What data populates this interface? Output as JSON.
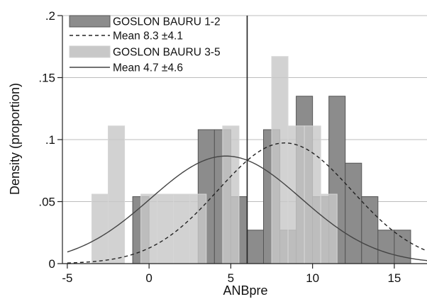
{
  "chart_data": {
    "type": "bar",
    "xlabel": "ANBpre",
    "ylabel": "Density (proportion)",
    "xlim": [
      -5.3,
      17
    ],
    "ylim": [
      0,
      0.2
    ],
    "x_ticks": [
      -5,
      0,
      5,
      10,
      15
    ],
    "x_tick_labels": [
      "-5",
      "0",
      "5",
      "10",
      "15"
    ],
    "y_ticks": [
      0,
      0.05,
      0.1,
      0.15,
      0.2
    ],
    "y_tick_labels": [
      "0",
      ".05",
      ".1",
      ".15",
      ".2"
    ],
    "grid": "horizontal",
    "reference_line_x": 6,
    "legend_position": "top-left",
    "series": [
      {
        "name": "GOSLON BAURU 1-2",
        "kind": "histogram",
        "color": "#8c8c8c",
        "bins": [
          {
            "x0": -1,
            "x1": 0,
            "value": 0.054
          },
          {
            "x0": 3,
            "x1": 4,
            "value": 0.108
          },
          {
            "x0": 4,
            "x1": 5,
            "value": 0.108
          },
          {
            "x0": 5,
            "x1": 6,
            "value": 0.054
          },
          {
            "x0": 6,
            "x1": 7,
            "value": 0.027
          },
          {
            "x0": 7,
            "x1": 8,
            "value": 0.108
          },
          {
            "x0": 8,
            "x1": 9,
            "value": 0.027
          },
          {
            "x0": 9,
            "x1": 10,
            "value": 0.135
          },
          {
            "x0": 10,
            "x1": 11,
            "value": 0.054
          },
          {
            "x0": 11,
            "x1": 12,
            "value": 0.135
          },
          {
            "x0": 12,
            "x1": 13,
            "value": 0.081
          },
          {
            "x0": 13,
            "x1": 14,
            "value": 0.054
          },
          {
            "x0": 14,
            "x1": 15,
            "value": 0.027
          },
          {
            "x0": 15,
            "x1": 16,
            "value": 0.027
          }
        ]
      },
      {
        "name": "Mean 8.3 ±4.1",
        "kind": "normal-curve",
        "style": "dashed",
        "color": "#222222",
        "mean": 8.3,
        "sd": 4.1
      },
      {
        "name": "GOSLON BAURU 3-5",
        "kind": "histogram",
        "color": "#c8c8c8",
        "bins": [
          {
            "x0": -3.5,
            "x1": -2.5,
            "value": 0.056
          },
          {
            "x0": -2.5,
            "x1": -1.5,
            "value": 0.111
          },
          {
            "x0": -0.5,
            "x1": 0.5,
            "value": 0.056
          },
          {
            "x0": 0.5,
            "x1": 1.5,
            "value": 0.056
          },
          {
            "x0": 1.5,
            "x1": 2.5,
            "value": 0.056
          },
          {
            "x0": 2.5,
            "x1": 3.5,
            "value": 0.056
          },
          {
            "x0": 4.5,
            "x1": 5.5,
            "value": 0.111
          },
          {
            "x0": 7.5,
            "x1": 8.5,
            "value": 0.167
          },
          {
            "x0": 8.5,
            "x1": 9.5,
            "value": 0.111
          },
          {
            "x0": 9.5,
            "x1": 10.5,
            "value": 0.111
          },
          {
            "x0": 10.5,
            "x1": 11.5,
            "value": 0.056
          }
        ]
      },
      {
        "name": "Mean 4.7 ±4.6",
        "kind": "normal-curve",
        "style": "solid",
        "color": "#444444",
        "mean": 4.7,
        "sd": 4.6
      }
    ]
  }
}
